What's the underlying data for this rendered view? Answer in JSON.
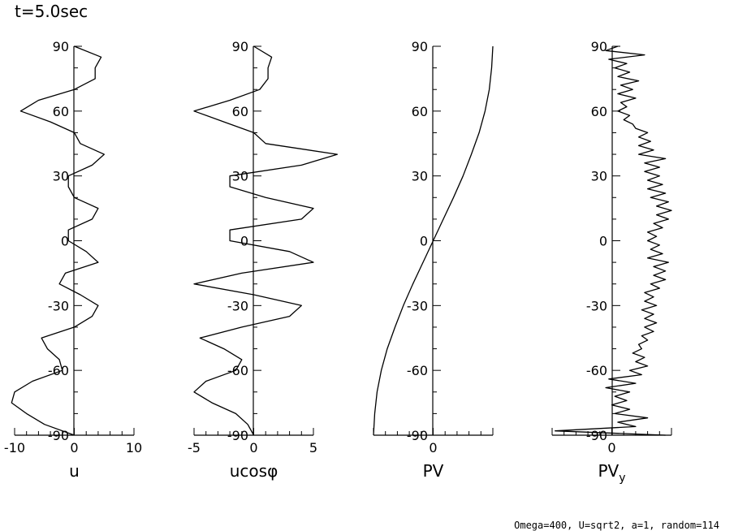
{
  "title": "t=5.0sec",
  "footer": "Omega=400, U=sqrt2, a=1, random=114",
  "chart_data": [
    {
      "type": "line",
      "xlabel": "u",
      "xlim": [
        -10,
        10
      ],
      "xticks": [
        "-10",
        "0",
        "10"
      ],
      "ylim": [
        -90,
        90
      ],
      "yticks": [
        "-90",
        "-60",
        "-30",
        "0",
        "30",
        "60",
        "90"
      ],
      "y": [
        -90,
        -85,
        -80,
        -75,
        -70,
        -65,
        -60,
        -55,
        -50,
        -45,
        -40,
        -35,
        -30,
        -25,
        -20,
        -15,
        -10,
        -5,
        0,
        5,
        10,
        15,
        20,
        25,
        30,
        35,
        40,
        45,
        50,
        55,
        60,
        65,
        70,
        75,
        80,
        85,
        90
      ],
      "x": [
        0,
        -5,
        -8,
        -10.5,
        -10,
        -7,
        -2,
        -2.5,
        -4.5,
        -5.5,
        0,
        3,
        4,
        1,
        -2.5,
        -1.5,
        4,
        2,
        -1,
        -1,
        3,
        4,
        0,
        -1,
        -1,
        3,
        5,
        1,
        0,
        -4,
        -9,
        -6,
        0,
        3.5,
        3.5,
        4.5,
        0
      ]
    },
    {
      "type": "line",
      "xlabel": "ucosφ",
      "xlim": [
        -5,
        5
      ],
      "xticks": [
        "-5",
        "0",
        "5"
      ],
      "ylim": [
        -90,
        90
      ],
      "yticks": [
        "-90",
        "-60",
        "-30",
        "0",
        "30",
        "60",
        "90"
      ],
      "y": [
        -90,
        -85,
        -80,
        -75,
        -70,
        -65,
        -60,
        -55,
        -50,
        -45,
        -40,
        -35,
        -30,
        -25,
        -20,
        -15,
        -10,
        -5,
        0,
        5,
        10,
        15,
        20,
        25,
        30,
        35,
        40,
        45,
        50,
        55,
        60,
        65,
        70,
        75,
        80,
        85,
        90
      ],
      "x": [
        0,
        -0.5,
        -1.5,
        -3.5,
        -5,
        -4,
        -1.5,
        -1,
        -2.5,
        -4.5,
        -1,
        3,
        4,
        0,
        -5,
        -1,
        5,
        3,
        -2,
        -2,
        4,
        5,
        1,
        -2,
        -2,
        4,
        7,
        1,
        0,
        -2.5,
        -5,
        -2,
        0.5,
        1.2,
        1.2,
        1.5,
        0
      ]
    },
    {
      "type": "line",
      "xlabel": "PV",
      "xlim": [
        -1,
        1
      ],
      "xticks": [
        "0"
      ],
      "ylim": [
        -90,
        90
      ],
      "yticks": [
        "-90",
        "-60",
        "-30",
        "0",
        "30",
        "60",
        "90"
      ],
      "y": [
        -90,
        -80,
        -70,
        -60,
        -50,
        -40,
        -30,
        -20,
        -10,
        0,
        10,
        20,
        30,
        40,
        50,
        60,
        70,
        80,
        90
      ],
      "x": [
        -1.0,
        -0.98,
        -0.94,
        -0.87,
        -0.77,
        -0.64,
        -0.5,
        -0.34,
        -0.17,
        0,
        0.17,
        0.34,
        0.5,
        0.64,
        0.77,
        0.87,
        0.94,
        0.98,
        1.0
      ]
    },
    {
      "type": "line",
      "xlabel": "PV",
      "xlabel_sub": "y",
      "xlim": [
        -1,
        1
      ],
      "xticks": [
        "0"
      ],
      "ylim": [
        -90,
        90
      ],
      "yticks": [
        "-90",
        "-60",
        "-30",
        "0",
        "30",
        "60",
        "90"
      ],
      "y": [
        -90,
        -88,
        -86,
        -84,
        -82,
        -80,
        -78,
        -76,
        -74,
        -72,
        -70,
        -68,
        -66,
        -64,
        -62,
        -60,
        -58,
        -56,
        -54,
        -52,
        -50,
        -48,
        -46,
        -44,
        -42,
        -40,
        -38,
        -36,
        -34,
        -32,
        -30,
        -28,
        -26,
        -24,
        -22,
        -20,
        -18,
        -16,
        -14,
        -12,
        -10,
        -8,
        -6,
        -4,
        -2,
        0,
        2,
        4,
        6,
        8,
        10,
        12,
        14,
        16,
        18,
        20,
        22,
        24,
        26,
        28,
        30,
        32,
        34,
        36,
        38,
        40,
        42,
        44,
        46,
        48,
        50,
        52,
        54,
        56,
        58,
        60,
        62,
        64,
        66,
        68,
        70,
        72,
        74,
        76,
        78,
        80,
        82,
        84,
        86,
        88,
        90
      ],
      "x": [
        0.9,
        -0.95,
        0.4,
        0.1,
        0.6,
        0.05,
        0.3,
        0.0,
        0.25,
        0.05,
        0.3,
        -0.1,
        0.4,
        -0.05,
        0.5,
        0.3,
        0.6,
        0.4,
        0.55,
        0.35,
        0.5,
        0.45,
        0.6,
        0.5,
        0.7,
        0.55,
        0.75,
        0.55,
        0.7,
        0.5,
        0.75,
        0.55,
        0.7,
        0.55,
        0.8,
        0.65,
        0.9,
        0.7,
        0.9,
        0.7,
        0.95,
        0.6,
        0.85,
        0.65,
        0.8,
        0.6,
        0.75,
        0.6,
        0.85,
        0.7,
        0.95,
        0.75,
        1.0,
        0.75,
        0.95,
        0.65,
        0.9,
        0.6,
        0.85,
        0.6,
        0.8,
        0.55,
        0.8,
        0.55,
        0.9,
        0.45,
        0.7,
        0.45,
        0.65,
        0.45,
        0.6,
        0.4,
        0.35,
        0.2,
        0.3,
        0.1,
        0.25,
        0.15,
        0.4,
        0.1,
        0.35,
        0.15,
        0.45,
        0.1,
        0.3,
        0.05,
        0.25,
        -0.05,
        0.55,
        -0.1,
        0.1
      ]
    }
  ]
}
